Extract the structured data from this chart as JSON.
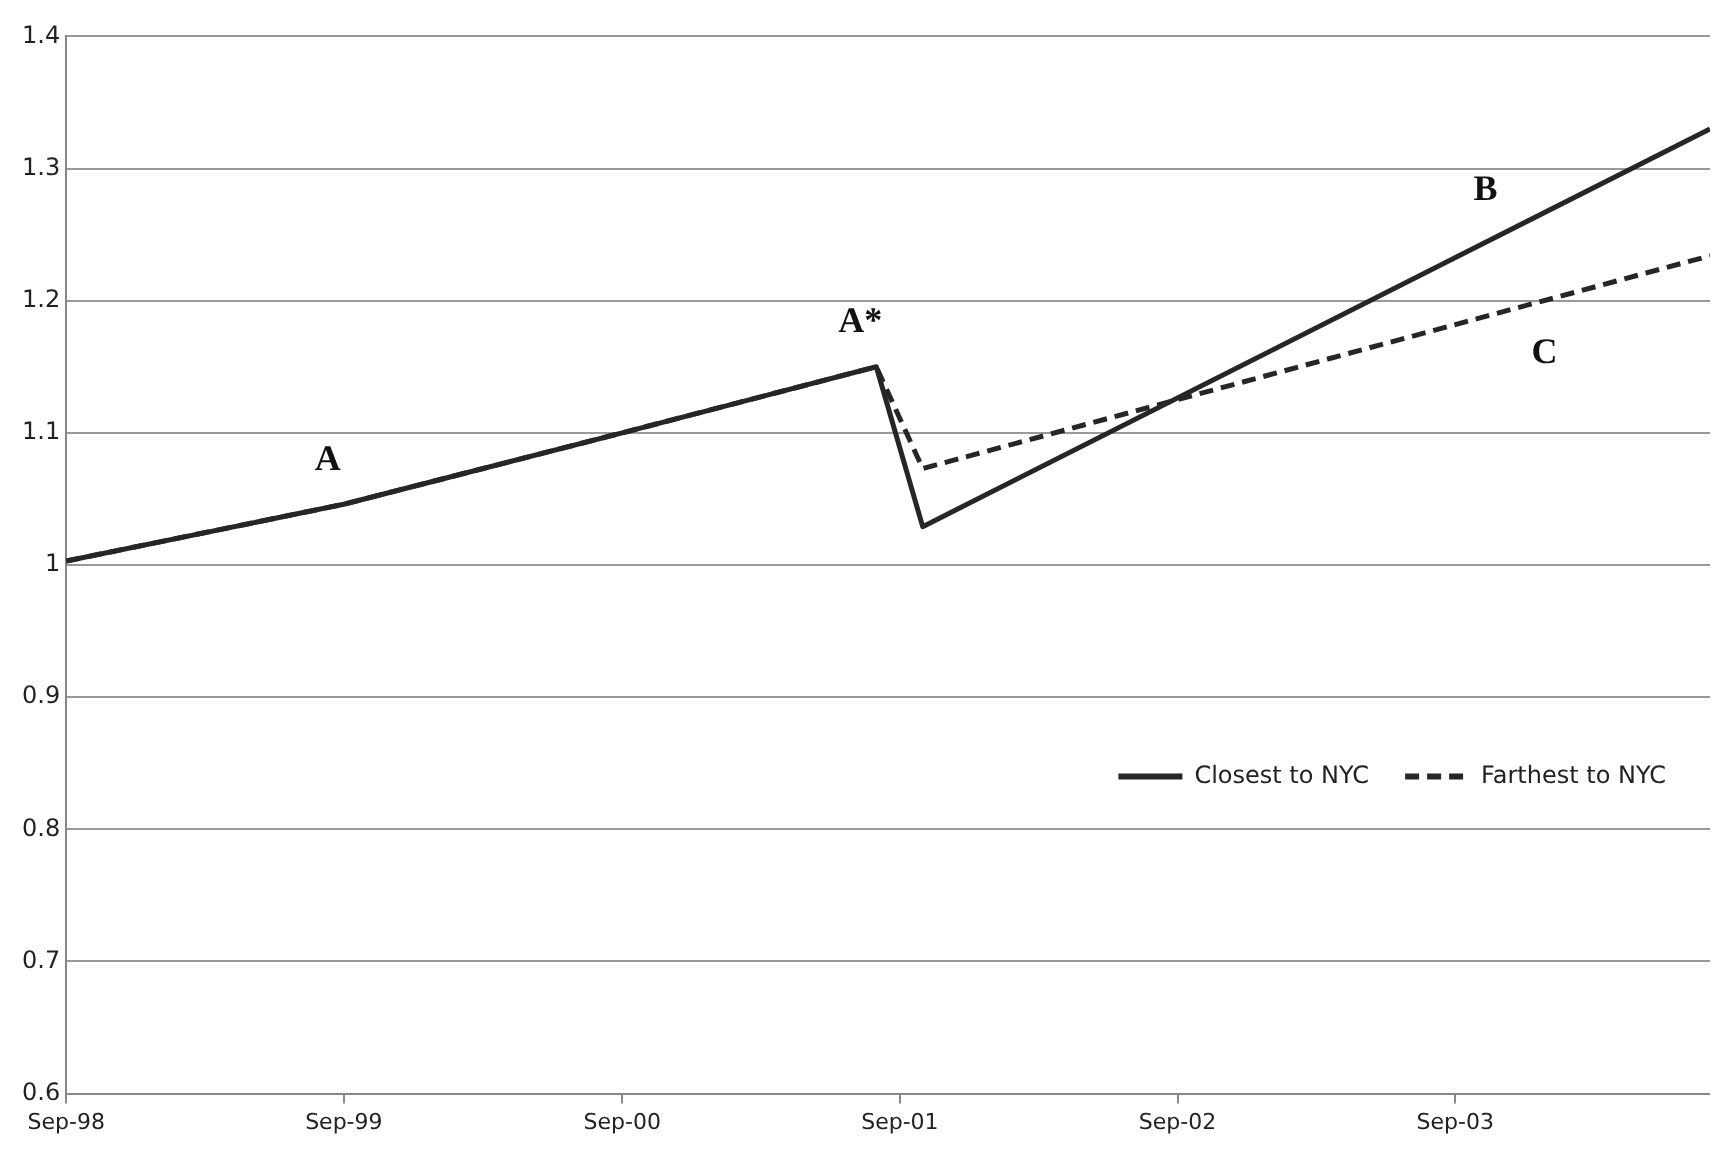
{
  "chart_data": {
    "type": "line",
    "x": [
      "1998-09",
      "1999-09",
      "2000-09",
      "2001-08",
      "2001-10",
      "2004-08"
    ],
    "series": [
      {
        "name": "Closest to NYC",
        "color": "#262626",
        "line_style": "solid",
        "values": [
          1.003,
          1.046,
          1.1,
          1.15,
          1.029,
          1.33
        ]
      },
      {
        "name": "Farthest to NYC",
        "color": "#262626",
        "line_style": "dashed",
        "values": [
          1.003,
          1.046,
          1.1,
          1.15,
          1.073,
          1.234
        ]
      }
    ],
    "xlim": [
      "1998-09",
      "2004-08"
    ],
    "xticks": [
      {
        "value": "1998-09",
        "label": "Sep-98"
      },
      {
        "value": "1999-09",
        "label": "Sep-99"
      },
      {
        "value": "2000-09",
        "label": "Sep-00"
      },
      {
        "value": "2001-09",
        "label": "Sep-01"
      },
      {
        "value": "2002-09",
        "label": "Sep-02"
      },
      {
        "value": "2003-09",
        "label": "Sep-03"
      }
    ],
    "ylim": [
      0.6,
      1.4
    ],
    "yticks": [
      0.6,
      0.7,
      0.8,
      0.9,
      1,
      1.1,
      1.2,
      1.3,
      1.4
    ],
    "grid": "y",
    "legend": "right",
    "marker": "none",
    "annotations": [
      {
        "text": "A",
        "x": "1999-09",
        "y": 1.046
      },
      {
        "text": "A*",
        "x": "2001-08",
        "y": 1.15
      },
      {
        "text": "B",
        "x": "2003-11",
        "y": 1.25
      },
      {
        "text": "C",
        "x": "2003-12",
        "y": 1.196
      }
    ]
  }
}
